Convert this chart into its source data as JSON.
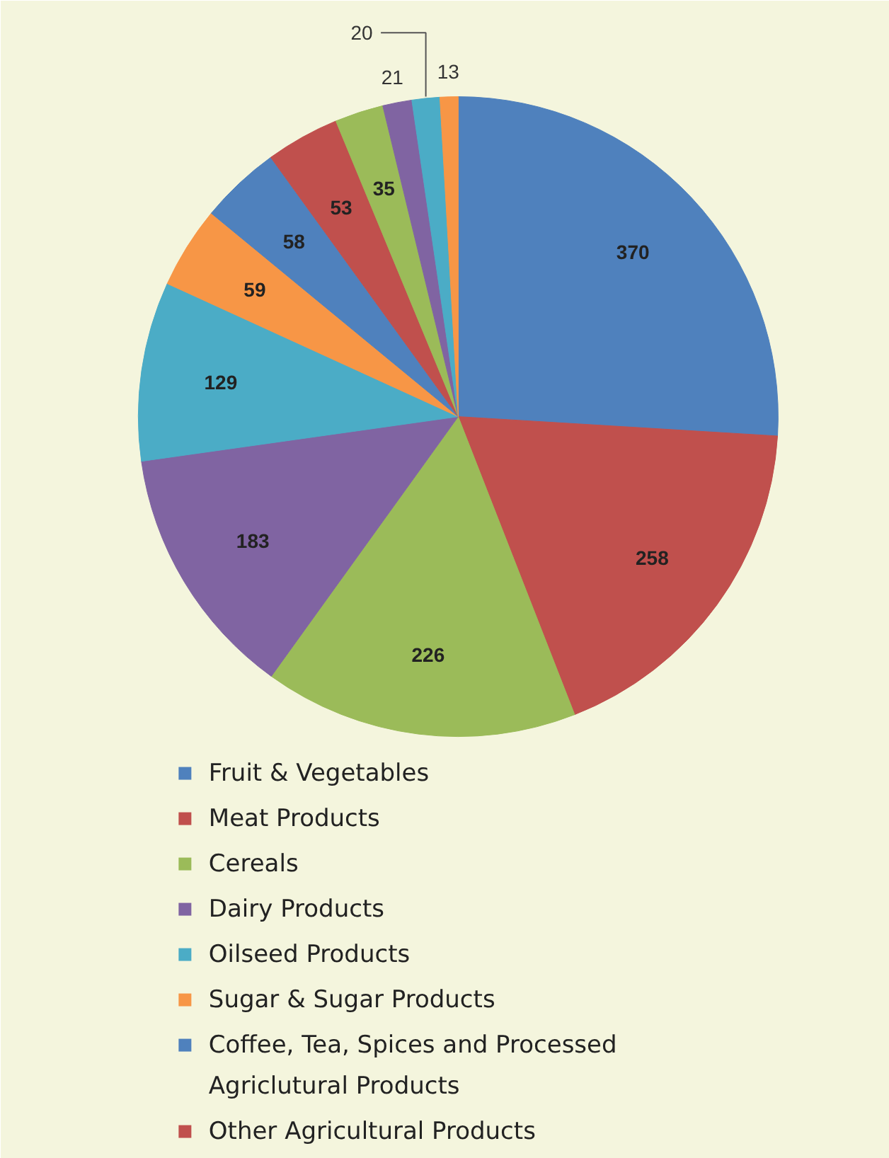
{
  "chart_data": {
    "type": "pie",
    "data_labels": true,
    "legend": "bottom",
    "categories": [
      "Fruit & Vegetables",
      "Meat Products",
      "Cereals",
      "Dairy Products",
      "Oilseed Products",
      "Sugar & Sugar Products",
      "Coffee, Tea, Spices and Processed Agriclutural Products",
      "Other Agricultural Products",
      null,
      null,
      null,
      null
    ],
    "values": [
      370,
      258,
      226,
      183,
      129,
      59,
      58,
      53,
      35,
      21,
      20,
      13
    ],
    "colors": [
      "#4f81bd",
      "#c0504d",
      "#9bbb59",
      "#8064a2",
      "#4bacc6",
      "#f79646",
      "#4f81bd",
      "#c0504d",
      "#9bbb59",
      "#8064a2",
      "#4bacc6",
      "#f79646"
    ]
  }
}
